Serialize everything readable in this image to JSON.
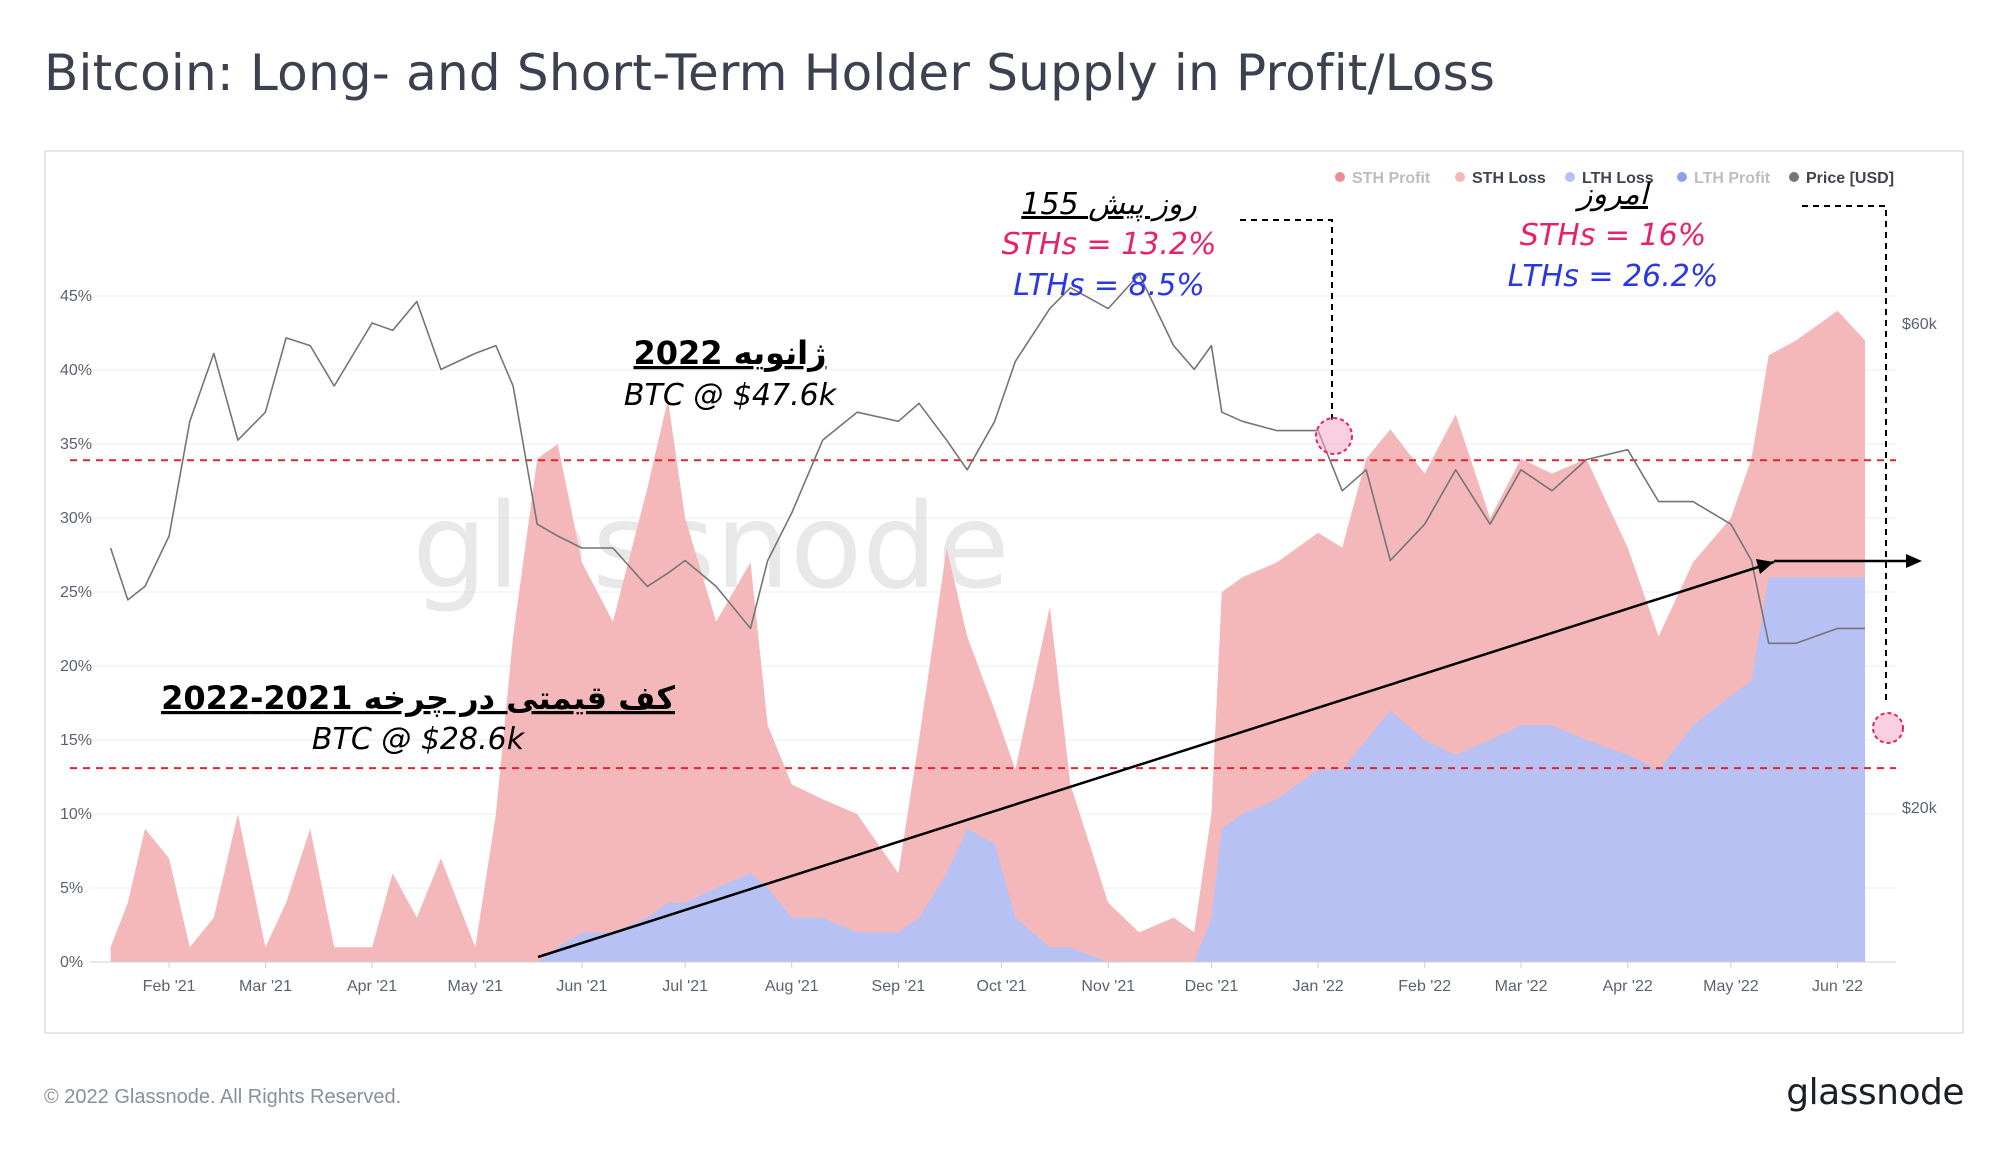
{
  "title": "Bitcoin: Long- and Short-Term Holder Supply in Profit/Loss",
  "footer": {
    "copyright": "© 2022 Glassnode. All Rights Reserved.",
    "logo": "glassnode"
  },
  "watermark": "glassnode",
  "colors": {
    "sth_profit": "#e2404c",
    "sth_loss": "#f5b8ba",
    "lth_loss": "#b7c1f3",
    "lth_profit": "#3f63e0",
    "price": "#757575",
    "red_dashed": "#e8222a",
    "pink_text": "#e8226a",
    "blue_text": "#2a37e4"
  },
  "legend": [
    {
      "label": "STH Profit",
      "color": "#e2404c",
      "faded": true
    },
    {
      "label": "STH Loss",
      "color": "#f5b8ba",
      "faded": false
    },
    {
      "label": "LTH Loss",
      "color": "#b7c1f3",
      "faded": false
    },
    {
      "label": "LTH Profit",
      "color": "#3f63e0",
      "faded": true
    },
    {
      "label": "Price [USD]",
      "color": "#757575",
      "faded": false
    }
  ],
  "annotations": {
    "jan2022_title": "ژانویه 2022",
    "jan2022_price": "BTC @ $47.6k",
    "floor_title": "کف قیمتی در چرخه 2021-2022",
    "floor_price": "BTC @ $28.6k",
    "ago_title": "155 روز پیش",
    "ago_sth": "STHs = 13.2%",
    "ago_lth": "LTHs = 8.5%",
    "today_title": "امروز",
    "today_sth": "STHs = 16%",
    "today_lth": "LTHs = 26.2%"
  },
  "chart_data": {
    "type": "area",
    "x_ticks": [
      "Feb '21",
      "Mar '21",
      "Apr '21",
      "May '21",
      "Jun '21",
      "Jul '21",
      "Aug '21",
      "Sep '21",
      "Oct '21",
      "Nov '21",
      "Dec '21",
      "Jan '22",
      "Feb '22",
      "Mar '22",
      "Apr '22",
      "May '22",
      "Jun '22"
    ],
    "y_left_ticks": [
      "0%",
      "5%",
      "10%",
      "15%",
      "20%",
      "25%",
      "30%",
      "35%",
      "40%",
      "45%"
    ],
    "y_left_range": [
      0,
      50
    ],
    "y_right_ticks": [
      "$20k",
      "$60k"
    ],
    "y_right_scale": "log",
    "x": [
      "2021-01-15",
      "2021-01-20",
      "2021-01-25",
      "2021-02-01",
      "2021-02-07",
      "2021-02-14",
      "2021-02-21",
      "2021-03-01",
      "2021-03-07",
      "2021-03-14",
      "2021-03-21",
      "2021-04-01",
      "2021-04-07",
      "2021-04-14",
      "2021-04-21",
      "2021-05-01",
      "2021-05-07",
      "2021-05-12",
      "2021-05-19",
      "2021-05-25",
      "2021-06-01",
      "2021-06-10",
      "2021-06-20",
      "2021-06-26",
      "2021-07-01",
      "2021-07-10",
      "2021-07-20",
      "2021-07-25",
      "2021-08-01",
      "2021-08-10",
      "2021-08-20",
      "2021-09-01",
      "2021-09-07",
      "2021-09-15",
      "2021-09-21",
      "2021-09-29",
      "2021-10-05",
      "2021-10-15",
      "2021-10-21",
      "2021-11-01",
      "2021-11-10",
      "2021-11-20",
      "2021-11-26",
      "2021-12-01",
      "2021-12-04",
      "2021-12-10",
      "2021-12-20",
      "2022-01-01",
      "2022-01-08",
      "2022-01-15",
      "2022-01-22",
      "2022-02-01",
      "2022-02-10",
      "2022-02-20",
      "2022-03-01",
      "2022-03-10",
      "2022-03-20",
      "2022-04-01",
      "2022-04-10",
      "2022-04-20",
      "2022-05-01",
      "2022-05-07",
      "2022-05-12",
      "2022-05-20",
      "2022-06-01",
      "2022-06-09"
    ],
    "series": [
      {
        "name": "STH Loss",
        "color": "#f5b8ba",
        "values": [
          1,
          4,
          9,
          7,
          1,
          3,
          10,
          1,
          4,
          9,
          1,
          1,
          6,
          3,
          7,
          1,
          10,
          22,
          34,
          35,
          27,
          23,
          32,
          38,
          30,
          23,
          27,
          16,
          12,
          11,
          10,
          6,
          15,
          28,
          22,
          17,
          13,
          24,
          12,
          4,
          2,
          3,
          2,
          10,
          25,
          26,
          27,
          29,
          28,
          34,
          36,
          33,
          37,
          30,
          34,
          33,
          34,
          28,
          22,
          27,
          30,
          34,
          41,
          42,
          44,
          42
        ]
      },
      {
        "name": "LTH Loss",
        "color": "#b7c1f3",
        "values": [
          0,
          0,
          0,
          0,
          0,
          0,
          0,
          0,
          0,
          0,
          0,
          0,
          0,
          0,
          0,
          0,
          0,
          0,
          0,
          1,
          2,
          2,
          3,
          4,
          4,
          5,
          6,
          5,
          3,
          3,
          2,
          2,
          3,
          6,
          9,
          8,
          3,
          1,
          1,
          0,
          0,
          0,
          0,
          3,
          9,
          10,
          11,
          13,
          13,
          15,
          17,
          15,
          14,
          15,
          16,
          16,
          15,
          14,
          13,
          16,
          18,
          19,
          26,
          26,
          26,
          26
        ]
      },
      {
        "name": "Price [USD]",
        "color": "#757575",
        "values": [
          36000,
          32000,
          33000,
          37000,
          48000,
          56000,
          46000,
          49000,
          58000,
          57000,
          52000,
          60000,
          59000,
          63000,
          54000,
          56000,
          57000,
          52000,
          38000,
          37000,
          36000,
          36000,
          33000,
          34000,
          35000,
          33000,
          30000,
          35000,
          39000,
          46000,
          49000,
          48000,
          50000,
          46000,
          43000,
          48000,
          55000,
          62000,
          65000,
          62000,
          67000,
          57000,
          54000,
          57000,
          49000,
          48000,
          47000,
          47000,
          41000,
          43000,
          35000,
          38000,
          43000,
          38000,
          43000,
          41000,
          44000,
          45000,
          40000,
          40000,
          38000,
          35000,
          29000,
          29000,
          30000,
          30000
        ]
      }
    ],
    "reference_lines": [
      {
        "label": "BTC @ $47.6k",
        "y_percent": 33.9
      },
      {
        "label": "BTC @ $28.6k",
        "y_percent": 13.1
      }
    ]
  }
}
